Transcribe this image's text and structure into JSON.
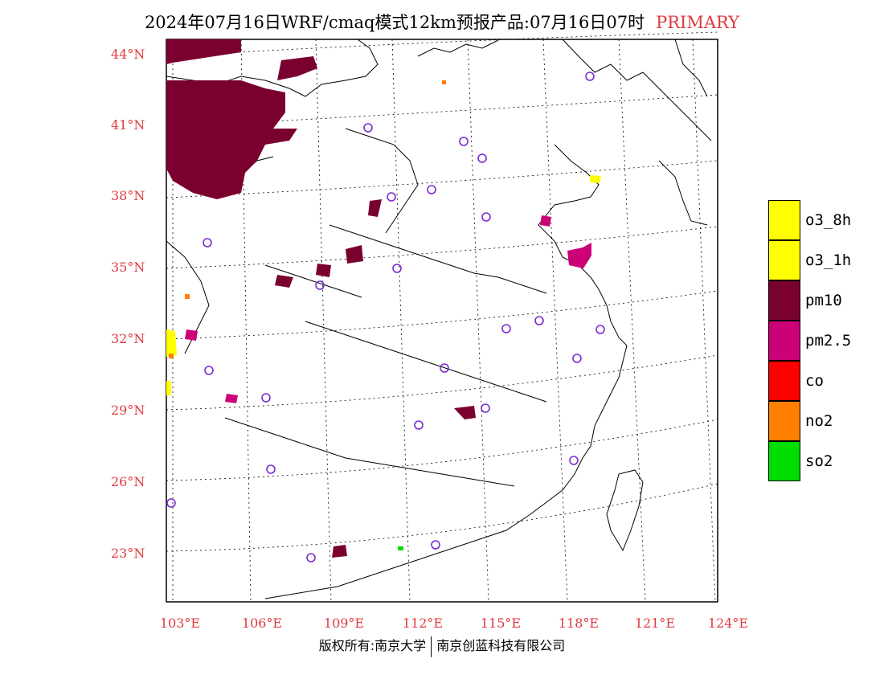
{
  "title": {
    "main": "2024年07月16日WRF/cmaq模式12km预报产品:07月16日07时",
    "tag": "PRIMARY"
  },
  "colors": {
    "pm10": "#7a0030",
    "pm25": "#cc0077",
    "o3": "#ffff00",
    "co": "#ff0000",
    "no2": "#ff7f00",
    "so2": "#00dd00",
    "station": "#7a2ad0",
    "label": "#e0393f"
  },
  "lat_labels": [
    "44°N",
    "41°N",
    "38°N",
    "35°N",
    "32°N",
    "29°N",
    "26°N",
    "23°N"
  ],
  "lon_labels": [
    "103°E",
    "106°E",
    "109°E",
    "112°E",
    "115°E",
    "118°E",
    "121°E",
    "124°E"
  ],
  "legend": [
    {
      "label": "o3_8h",
      "color": "#ffff00"
    },
    {
      "label": "o3_1h",
      "color": "#ffff00"
    },
    {
      "label": "pm10",
      "color": "#7a0030"
    },
    {
      "label": "pm2.5",
      "color": "#cc0077"
    },
    {
      "label": "co",
      "color": "#ff0000"
    },
    {
      "label": "no2",
      "color": "#ff7f00"
    },
    {
      "label": "so2",
      "color": "#00dd00"
    }
  ],
  "footer": {
    "left": "版权所有:南京大学",
    "right": "南京创蓝科技有限公司"
  }
}
